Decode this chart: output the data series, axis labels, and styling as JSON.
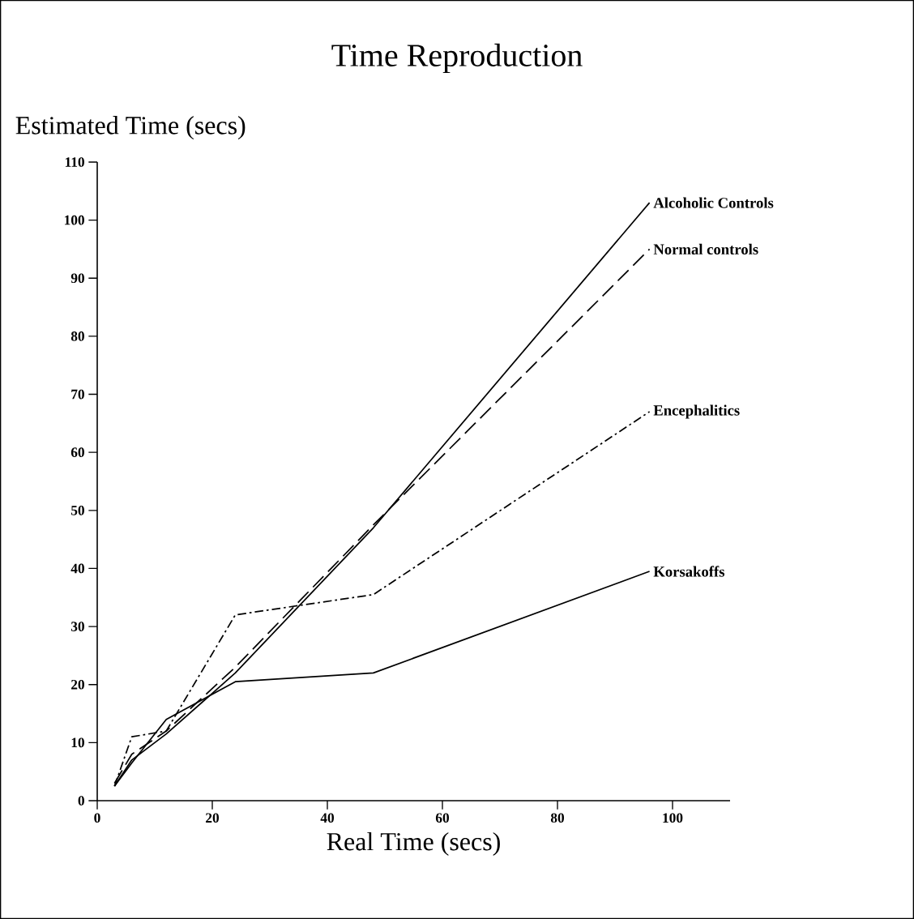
{
  "chart_data": {
    "type": "line",
    "title": "Time Reproduction",
    "xlabel": "Real Time (secs)",
    "ylabel": "Estimated Time (secs)",
    "x": [
      3,
      6,
      12,
      24,
      48,
      96
    ],
    "series": [
      {
        "name": "Alcoholic Controls",
        "color": "#000000",
        "line_style": "solid",
        "values": [
          2.5,
          7,
          11.5,
          22,
          47,
          103
        ]
      },
      {
        "name": "Normal controls",
        "color": "#000000",
        "line_style": "dashed",
        "values": [
          3,
          8,
          12,
          23,
          47.5,
          95
        ]
      },
      {
        "name": "Encephalitics",
        "color": "#000000",
        "line_style": "dashdot",
        "values": [
          2.5,
          11,
          12,
          32,
          35.5,
          67
        ]
      },
      {
        "name": "Korsakoffs",
        "color": "#000000",
        "line_style": "solid",
        "values": [
          2.5,
          6.5,
          14,
          20.5,
          22,
          39.5
        ]
      }
    ],
    "xlim": [
      0,
      110
    ],
    "ylim": [
      0,
      110
    ],
    "xticks": [
      0,
      20,
      40,
      60,
      80,
      100
    ],
    "yticks": [
      0,
      10,
      20,
      30,
      40,
      50,
      60,
      70,
      80,
      90,
      100,
      110
    ],
    "grid": false,
    "marker": "none"
  }
}
